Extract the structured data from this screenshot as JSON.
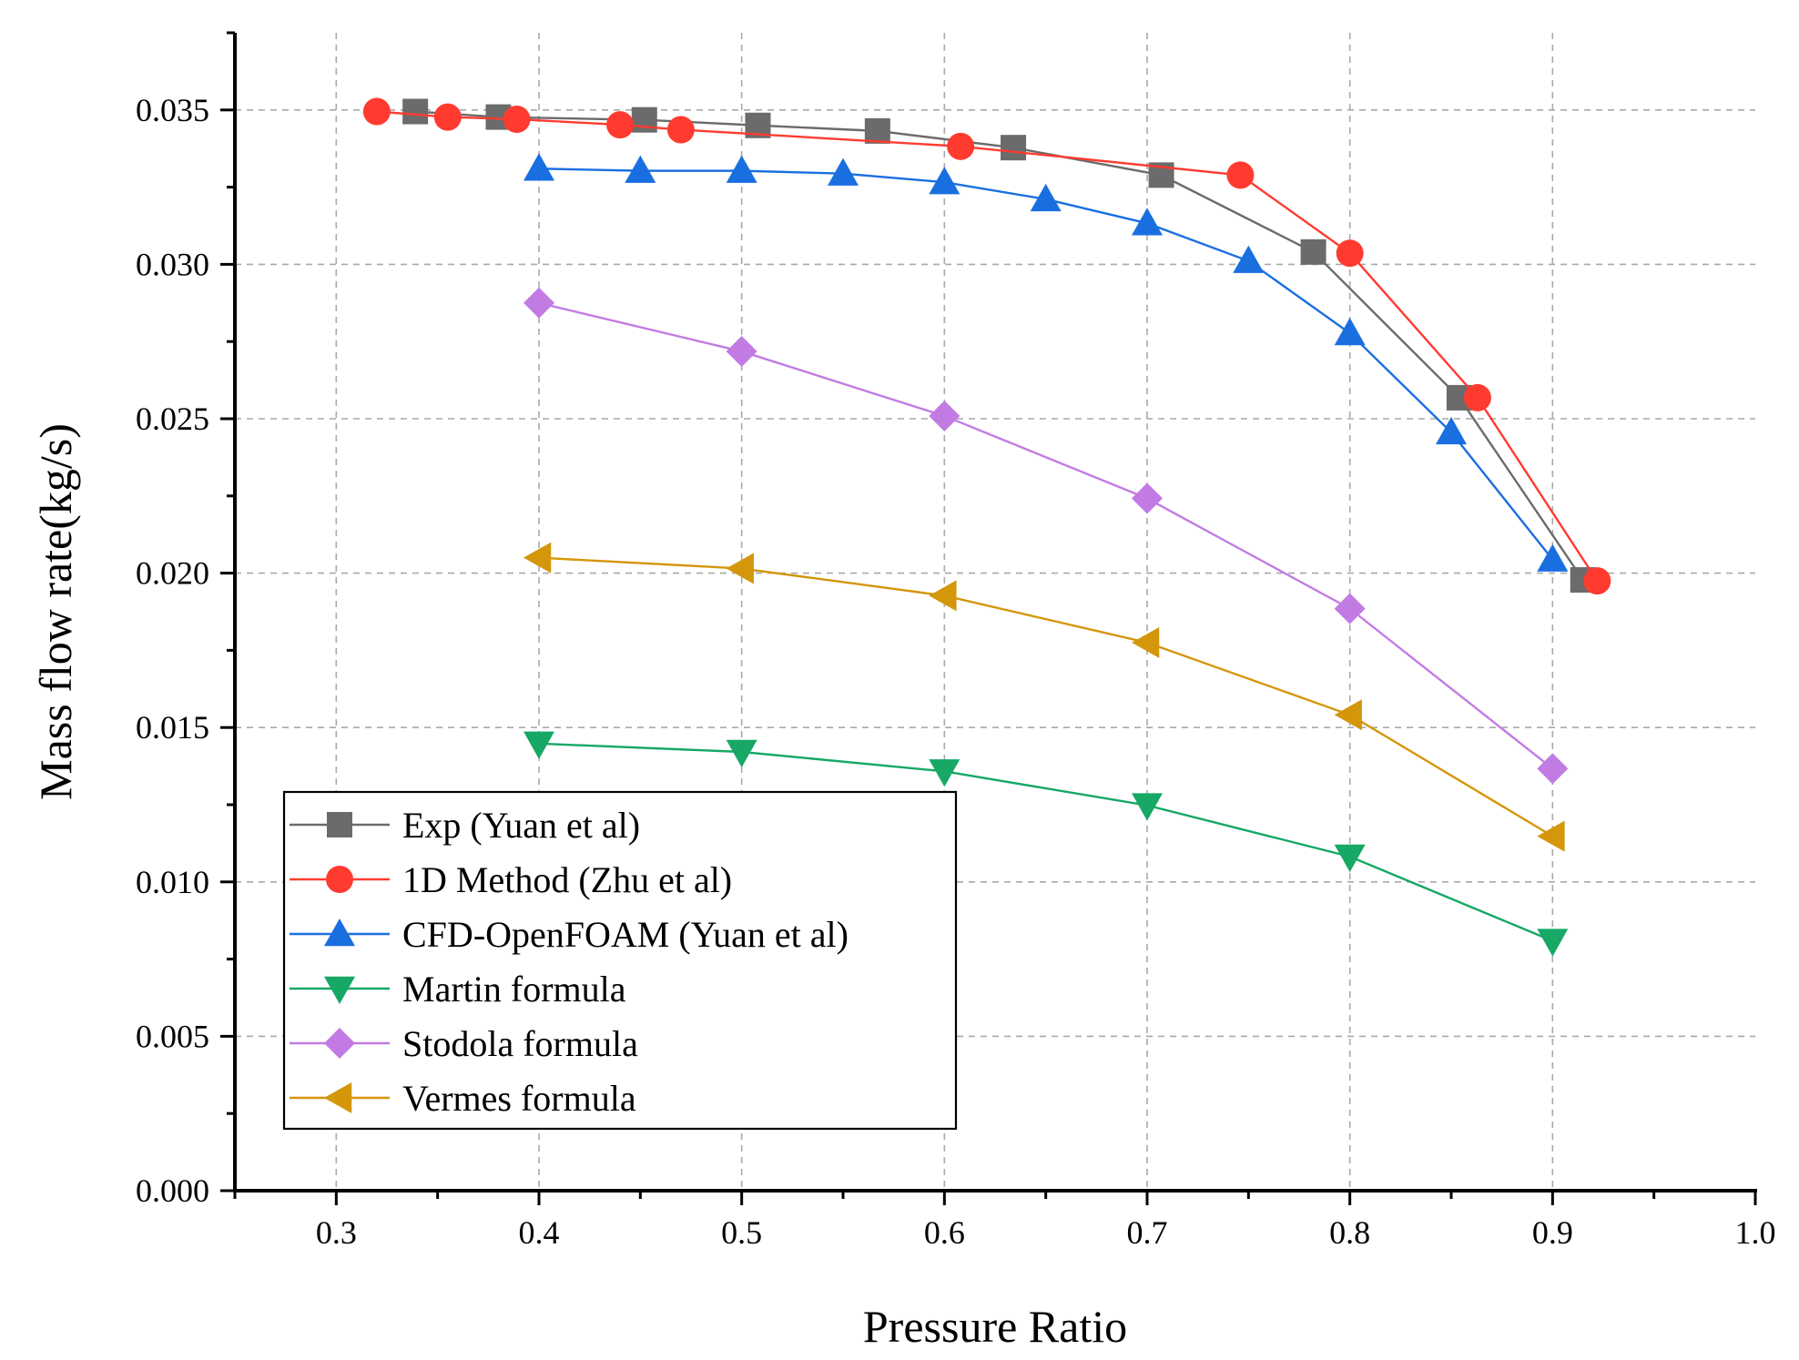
{
  "chart_data": {
    "type": "line",
    "xlabel": "Pressure Ratio",
    "ylabel": "Mass flow rate(kg/s)",
    "xlim": [
      0.25,
      1.0
    ],
    "ylim": [
      0.0,
      0.0375
    ],
    "xticks": [
      0.3,
      0.4,
      0.5,
      0.6,
      0.7,
      0.8,
      0.9,
      1.0
    ],
    "xtick_labels": [
      "0.3",
      "0.4",
      "0.5",
      "0.6",
      "0.7",
      "0.8",
      "0.9",
      "1.0"
    ],
    "yticks": [
      0.0,
      0.005,
      0.01,
      0.015,
      0.02,
      0.025,
      0.03,
      0.035
    ],
    "ytick_labels": [
      "0.000",
      "0.005",
      "0.010",
      "0.015",
      "0.020",
      "0.025",
      "0.030",
      "0.035"
    ],
    "grid": true,
    "legend_position": "bottom-left",
    "series": [
      {
        "name": "Exp (Yuan et al)",
        "color": "#6b6b6b",
        "marker": "square",
        "x": [
          0.339,
          0.38,
          0.452,
          0.508,
          0.567,
          0.634,
          0.707,
          0.782,
          0.854,
          0.915
        ],
        "y": [
          0.03495,
          0.03477,
          0.03468,
          0.0345,
          0.03432,
          0.03378,
          0.03289,
          0.0304,
          0.02568,
          0.01978
        ]
      },
      {
        "name": "1D Method (Zhu et al)",
        "color": "#ff3b30",
        "marker": "circle",
        "x": [
          0.32,
          0.355,
          0.389,
          0.44,
          0.47,
          0.608,
          0.746,
          0.8,
          0.863,
          0.922
        ],
        "y": [
          0.03495,
          0.03477,
          0.0347,
          0.03452,
          0.03436,
          0.03382,
          0.03289,
          0.03036,
          0.02568,
          0.01975
        ]
      },
      {
        "name": "CFD-OpenFOAM (Yuan et al)",
        "color": "#1a6fe0",
        "marker": "triangle-up",
        "x": [
          0.4,
          0.45,
          0.5,
          0.55,
          0.6,
          0.65,
          0.7,
          0.75,
          0.8,
          0.85,
          0.9
        ],
        "y": [
          0.0331,
          0.03303,
          0.03303,
          0.03294,
          0.03266,
          0.03211,
          0.03133,
          0.03011,
          0.02777,
          0.02456,
          0.02044
        ]
      },
      {
        "name": "Martin formula",
        "color": "#16a864",
        "marker": "triangle-down",
        "x": [
          0.4,
          0.5,
          0.6,
          0.7,
          0.8,
          0.9
        ],
        "y": [
          0.01448,
          0.01421,
          0.01358,
          0.01248,
          0.01082,
          0.00809
        ]
      },
      {
        "name": "Stodola formula",
        "color": "#c27be3",
        "marker": "diamond",
        "x": [
          0.4,
          0.5,
          0.6,
          0.7,
          0.8,
          0.9
        ],
        "y": [
          0.02875,
          0.02718,
          0.02509,
          0.02242,
          0.01885,
          0.01367
        ]
      },
      {
        "name": "Vermes formula",
        "color": "#d4960b",
        "marker": "triangle-left",
        "x": [
          0.4,
          0.5,
          0.6,
          0.7,
          0.8,
          0.9
        ],
        "y": [
          0.0205,
          0.02015,
          0.01927,
          0.01775,
          0.01541,
          0.01148
        ]
      }
    ]
  }
}
